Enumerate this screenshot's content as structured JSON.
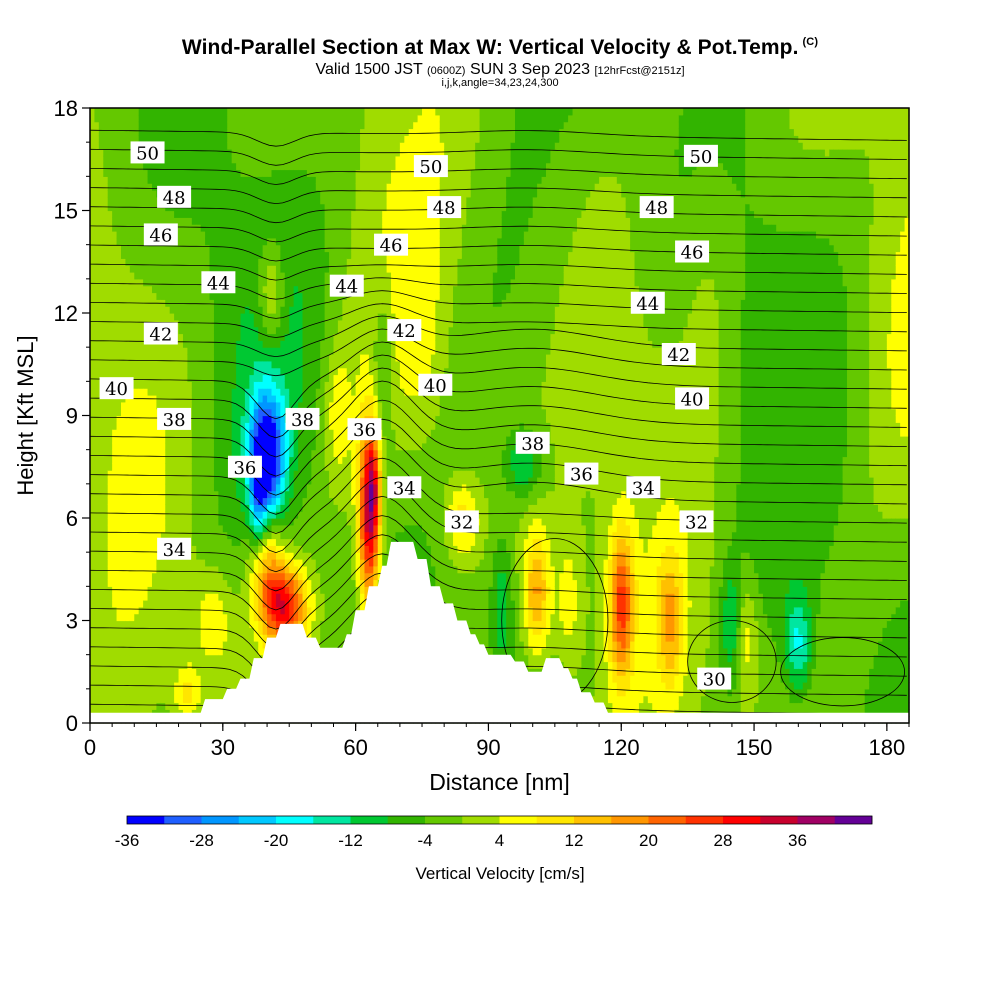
{
  "header": {
    "title": "Wind-Parallel Section at Max W: Vertical Velocity & Pot.Temp.",
    "copyright": "(C)",
    "valid_prefix": "Valid 1500 JST",
    "valid_utc": "(0600Z)",
    "valid_date": "SUN 3 Sep 2023",
    "forecast_note": "[12hrFcst@2151z]",
    "section_params": "i,j,k,angle=34,23,24,300"
  },
  "chart_data": {
    "type": "heatmap",
    "xlabel": "Distance [nm]",
    "ylabel": "Height [Kft MSL]",
    "xlim": [
      0,
      185
    ],
    "ylim": [
      0,
      18
    ],
    "x_ticks": [
      0,
      30,
      60,
      90,
      120,
      150,
      180
    ],
    "y_ticks": [
      0,
      3,
      6,
      9,
      12,
      15,
      18
    ],
    "colorbar": {
      "label": "Vertical Velocity [cm/s]",
      "levels": [
        -36,
        -32,
        -28,
        -24,
        -20,
        -16,
        -12,
        -8,
        -4,
        0,
        4,
        8,
        12,
        16,
        20,
        24,
        28,
        32,
        36,
        40
      ],
      "tick_labels": [
        "-36",
        "-28",
        "-20",
        "-12",
        "-4",
        "4",
        "12",
        "20",
        "28",
        "36"
      ],
      "colors": [
        "#0000ff",
        "#1f5fff",
        "#0096ff",
        "#00c8ff",
        "#00ffff",
        "#00e6a0",
        "#00c832",
        "#32b400",
        "#64c800",
        "#a0dc00",
        "#ffff00",
        "#ffe600",
        "#ffc000",
        "#ff9600",
        "#ff6400",
        "#ff3200",
        "#ff0000",
        "#c8002d",
        "#a00064",
        "#640096"
      ]
    },
    "terrain_profile": [
      [
        0,
        0.3
      ],
      [
        25,
        0.3
      ],
      [
        26,
        0.7
      ],
      [
        30,
        0.7
      ],
      [
        31,
        1.0
      ],
      [
        33,
        1.0
      ],
      [
        34,
        1.3
      ],
      [
        36,
        1.3
      ],
      [
        37,
        1.9
      ],
      [
        39,
        1.9
      ],
      [
        40,
        2.5
      ],
      [
        42,
        2.5
      ],
      [
        43,
        2.9
      ],
      [
        48,
        2.9
      ],
      [
        49,
        2.5
      ],
      [
        51,
        2.5
      ],
      [
        52,
        2.2
      ],
      [
        57,
        2.2
      ],
      [
        58,
        2.6
      ],
      [
        59,
        2.6
      ],
      [
        60,
        3.3
      ],
      [
        62,
        3.3
      ],
      [
        63,
        4.0
      ],
      [
        65,
        4.0
      ],
      [
        66,
        4.6
      ],
      [
        67,
        4.6
      ],
      [
        68,
        5.3
      ],
      [
        73,
        5.3
      ],
      [
        74,
        4.8
      ],
      [
        76,
        4.8
      ],
      [
        77,
        4.0
      ],
      [
        79,
        4.0
      ],
      [
        80,
        3.5
      ],
      [
        82,
        3.5
      ],
      [
        83,
        3.0
      ],
      [
        85,
        3.0
      ],
      [
        86,
        2.6
      ],
      [
        87,
        2.6
      ],
      [
        88,
        2.3
      ],
      [
        89,
        2.3
      ],
      [
        90,
        2.0
      ],
      [
        95,
        2.0
      ],
      [
        96,
        1.8
      ],
      [
        98,
        1.8
      ],
      [
        99,
        1.5
      ],
      [
        102,
        1.5
      ],
      [
        103,
        1.9
      ],
      [
        106,
        1.9
      ],
      [
        107,
        1.6
      ],
      [
        108,
        1.6
      ],
      [
        109,
        1.3
      ],
      [
        110,
        1.3
      ],
      [
        111,
        0.9
      ],
      [
        113,
        0.9
      ],
      [
        114,
        0.6
      ],
      [
        116,
        0.6
      ],
      [
        117,
        0.3
      ],
      [
        185,
        0.3
      ]
    ],
    "wind_cells": [
      {
        "x": 44,
        "y": 3.4,
        "sx": 5,
        "sy": 1.2,
        "w": 30
      },
      {
        "x": 40,
        "y": 4.6,
        "sx": 4,
        "sy": 1.6,
        "w": 16
      },
      {
        "x": 63,
        "y": 6.0,
        "sx": 2.5,
        "sy": 2.8,
        "w": 34
      },
      {
        "x": 64,
        "y": 7.0,
        "sx": 1.4,
        "sy": 1.6,
        "w": 14
      },
      {
        "x": 40,
        "y": 7.8,
        "sx": 4,
        "sy": 1.8,
        "w": -34
      },
      {
        "x": 38,
        "y": 6.5,
        "sx": 1.8,
        "sy": 1.6,
        "w": -12
      },
      {
        "x": 41,
        "y": 12.5,
        "sx": 3,
        "sy": 1.5,
        "w": 12
      },
      {
        "x": 66,
        "y": 10.5,
        "sx": 2.5,
        "sy": 2.5,
        "w": -8
      },
      {
        "x": 56,
        "y": 9.0,
        "sx": 3,
        "sy": 2,
        "w": 8
      },
      {
        "x": 101,
        "y": 3.8,
        "sx": 3,
        "sy": 1.8,
        "w": 18
      },
      {
        "x": 93,
        "y": 3.5,
        "sx": 2.5,
        "sy": 2,
        "w": -10
      },
      {
        "x": 120,
        "y": 3.5,
        "sx": 2.8,
        "sy": 2.2,
        "w": 24
      },
      {
        "x": 108,
        "y": 3.5,
        "sx": 3,
        "sy": 2,
        "w": 8
      },
      {
        "x": 131,
        "y": 3.0,
        "sx": 3,
        "sy": 2,
        "w": 14
      },
      {
        "x": 145,
        "y": 2.8,
        "sx": 2.5,
        "sy": 1.8,
        "w": -12
      },
      {
        "x": 160,
        "y": 2.3,
        "sx": 3,
        "sy": 1.5,
        "w": -14
      },
      {
        "x": 148,
        "y": 2.5,
        "sx": 3,
        "sy": 1.8,
        "w": 10
      },
      {
        "x": 98,
        "y": 7.6,
        "sx": 4,
        "sy": 1,
        "w": -12
      },
      {
        "x": 84,
        "y": 6.0,
        "sx": 4,
        "sy": 1.2,
        "w": 12
      },
      {
        "x": 28,
        "y": 3.0,
        "sx": 5,
        "sy": 1.5,
        "w": 8
      },
      {
        "x": 22,
        "y": 0.9,
        "sx": 3,
        "sy": 0.8,
        "w": 10
      },
      {
        "x": 75,
        "y": 11,
        "sx": 5,
        "sy": 3,
        "w": 4
      },
      {
        "x": 140,
        "y": 13,
        "sx": 6,
        "sy": 4,
        "w": 4
      },
      {
        "x": 160,
        "y": 9,
        "sx": 6,
        "sy": 3,
        "w": 4
      }
    ],
    "isentropes": {
      "label_values": [
        30,
        32,
        34,
        36,
        38,
        40,
        42,
        44,
        46,
        48,
        50
      ],
      "labels": [
        {
          "text": "50",
          "x": 13,
          "y": 16.7
        },
        {
          "text": "50",
          "x": 77,
          "y": 16.3
        },
        {
          "text": "50",
          "x": 138,
          "y": 16.6
        },
        {
          "text": "48",
          "x": 19,
          "y": 15.4
        },
        {
          "text": "48",
          "x": 80,
          "y": 15.1
        },
        {
          "text": "48",
          "x": 128,
          "y": 15.1
        },
        {
          "text": "46",
          "x": 16,
          "y": 14.3
        },
        {
          "text": "46",
          "x": 68,
          "y": 14.0
        },
        {
          "text": "46",
          "x": 136,
          "y": 13.8
        },
        {
          "text": "44",
          "x": 29,
          "y": 12.9
        },
        {
          "text": "44",
          "x": 58,
          "y": 12.8
        },
        {
          "text": "44",
          "x": 126,
          "y": 12.3
        },
        {
          "text": "42",
          "x": 16,
          "y": 11.4
        },
        {
          "text": "42",
          "x": 71,
          "y": 11.5
        },
        {
          "text": "42",
          "x": 133,
          "y": 10.8
        },
        {
          "text": "40",
          "x": 6,
          "y": 9.8
        },
        {
          "text": "40",
          "x": 78,
          "y": 9.9
        },
        {
          "text": "40",
          "x": 136,
          "y": 9.5
        },
        {
          "text": "38",
          "x": 19,
          "y": 8.9
        },
        {
          "text": "38",
          "x": 48,
          "y": 8.9
        },
        {
          "text": "38",
          "x": 100,
          "y": 8.2
        },
        {
          "text": "36",
          "x": 35,
          "y": 7.5
        },
        {
          "text": "36",
          "x": 62,
          "y": 8.6
        },
        {
          "text": "36",
          "x": 111,
          "y": 7.3
        },
        {
          "text": "34",
          "x": 71,
          "y": 6.9
        },
        {
          "text": "34",
          "x": 125,
          "y": 6.9
        },
        {
          "text": "34",
          "x": 19,
          "y": 5.1
        },
        {
          "text": "32",
          "x": 84,
          "y": 5.9
        },
        {
          "text": "32",
          "x": 137,
          "y": 5.9
        },
        {
          "text": "30",
          "x": 141,
          "y": 1.3
        }
      ]
    }
  }
}
